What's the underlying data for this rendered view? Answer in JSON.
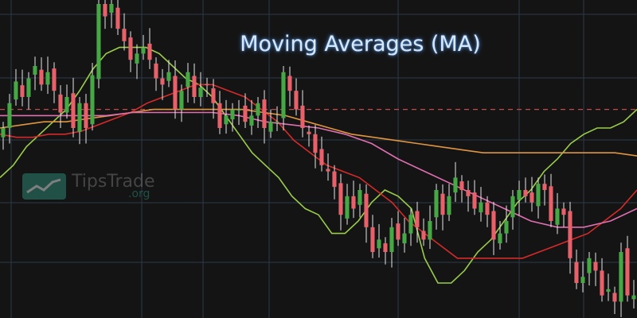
{
  "title": "Moving Averages (MA)",
  "watermark": {
    "name": "TipsTrade",
    "domain": ".org"
  },
  "colors": {
    "background": "#141414",
    "grid": "#2c3a48",
    "up_candle": "#46a845",
    "down_candle": "#e8606a",
    "reference_line": "#c24a4a",
    "title_glow": "#4b86d0"
  },
  "chart_data": {
    "type": "candlestick",
    "title": "Moving Averages (MA)",
    "xlabel": "",
    "ylabel": "",
    "x_range": [
      0,
      100
    ],
    "ylim": [
      0,
      100
    ],
    "grid": true,
    "legend": "none",
    "reference_line": {
      "y": 66,
      "style": "dashed",
      "color": "#c24a4a"
    },
    "candles_close": [
      60,
      68,
      75,
      70,
      76,
      80,
      74,
      78,
      72,
      65,
      70,
      60,
      68,
      60,
      77,
      100,
      96,
      100,
      92,
      88,
      82,
      84,
      86,
      82,
      76,
      74,
      78,
      66,
      72,
      78,
      70,
      73,
      74,
      68,
      60,
      64,
      66,
      66,
      62,
      64,
      68,
      60,
      62,
      62,
      78,
      72,
      66,
      60,
      58,
      52,
      48,
      46,
      41,
      32,
      38,
      34,
      40,
      28,
      20,
      24,
      20,
      28,
      24,
      26,
      32,
      28,
      24,
      30,
      40,
      32,
      38,
      44,
      40,
      38,
      34,
      36,
      32,
      24,
      26,
      30,
      38,
      40,
      38,
      36,
      42,
      40,
      30,
      34,
      32,
      18,
      10,
      12,
      18,
      14,
      6,
      8,
      4,
      20,
      6,
      6
    ],
    "series": [
      {
        "name": "",
        "color": "#9acd4a",
        "values": [
          44,
          48,
          54,
          58,
          62,
          66,
          72,
          79,
          84,
          86,
          86,
          86,
          84,
          80,
          76,
          74,
          70,
          64,
          58,
          52,
          48,
          44,
          38,
          34,
          32,
          26,
          26,
          30,
          36,
          40,
          38,
          34,
          18,
          10,
          10,
          14,
          20,
          24,
          30,
          36,
          40,
          46,
          50,
          55,
          58,
          60,
          60,
          62,
          66
        ]
      },
      {
        "name": "",
        "color": "#d62a2a",
        "values": [
          58,
          57,
          57,
          58,
          58,
          59,
          61,
          63,
          65,
          68,
          70,
          72,
          74,
          74,
          72,
          70,
          66,
          62,
          56,
          52,
          48,
          46,
          44,
          40,
          36,
          30,
          26,
          22,
          18,
          18,
          18,
          18,
          18,
          20,
          22,
          24,
          26,
          30,
          34,
          40
        ]
      },
      {
        "name": "",
        "color": "#e09540",
        "values": [
          60,
          61,
          62,
          62,
          63,
          64,
          65,
          66,
          66,
          66,
          66,
          66,
          65,
          64,
          62,
          60,
          58,
          57,
          56,
          55,
          54,
          53,
          52,
          52,
          52,
          52,
          52,
          52,
          52,
          51
        ]
      },
      {
        "name": "",
        "color": "#e06fb0",
        "values": [
          64,
          64,
          64,
          64,
          64,
          65,
          65,
          65,
          65,
          64,
          62,
          61,
          60,
          58,
          55,
          50,
          46,
          42,
          38,
          34,
          30,
          28,
          28,
          30,
          34
        ]
      }
    ]
  }
}
